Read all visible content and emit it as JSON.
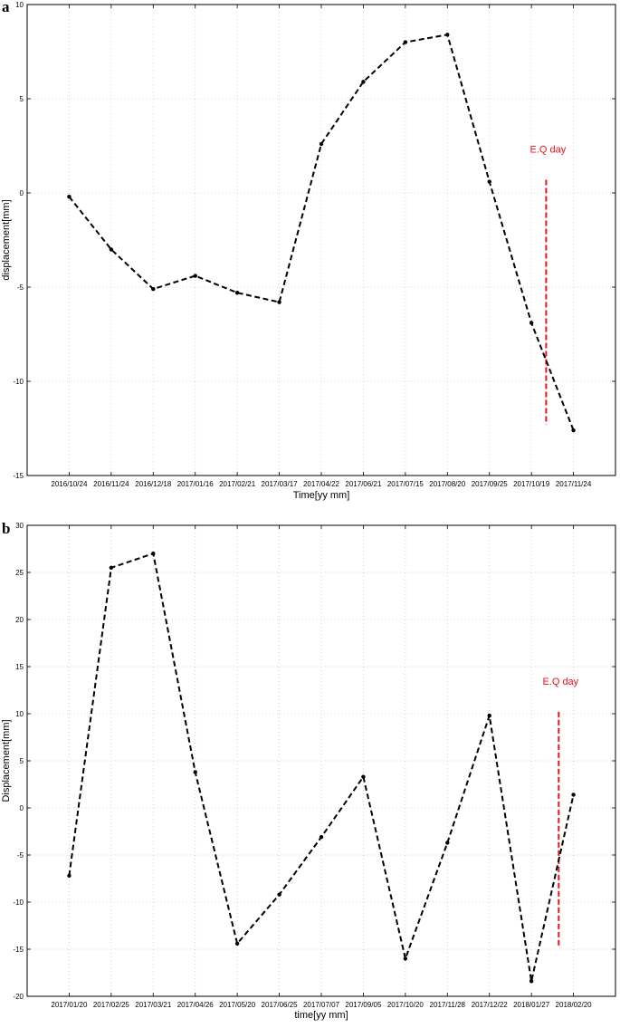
{
  "chart_data": [
    {
      "panel_label": "a",
      "type": "line",
      "xlabel": "Time[yy mm]",
      "ylabel": "displacement[mm]",
      "ylim": [
        -15,
        10
      ],
      "yticks": [
        -15,
        -10,
        -5,
        0,
        5,
        10
      ],
      "grid": true,
      "categories": [
        "2016/10/24",
        "2016/11/24",
        "2016/12/18",
        "2017/01/16",
        "2017/02/21",
        "2017/03/17",
        "2017/04/22",
        "2017/06/21",
        "2017/07/15",
        "2017/08/20",
        "2017/09/25",
        "2017/10/19",
        "2017/11/24"
      ],
      "series": [
        {
          "values": [
            -0.2,
            -3.0,
            -5.1,
            -4.4,
            -5.3,
            -5.8,
            2.6,
            5.9,
            8.0,
            8.4,
            0.6,
            -6.9,
            -12.6
          ]
        }
      ],
      "annotation": {
        "text": "E.Q day",
        "x_between": [
          11,
          12
        ],
        "x_frac": 0.35,
        "y_range": [
          -12.3,
          0.7
        ],
        "color": "#e8141b"
      }
    },
    {
      "panel_label": "b",
      "type": "line",
      "xlabel": "time[yy mm]",
      "ylabel": "Displacement[mm]",
      "ylim": [
        -20,
        30
      ],
      "yticks": [
        -20,
        -15,
        -10,
        -5,
        0,
        5,
        10,
        15,
        20,
        25,
        30
      ],
      "grid": true,
      "categories": [
        "2017/01/20",
        "2017/02/25",
        "2017/03/21",
        "2017/04/26",
        "2017/05/20",
        "2017/06/25",
        "2017/07/07",
        "2017/09/05",
        "2017/10/20",
        "2017/11/28",
        "2017/12/22",
        "2018/01/27",
        "2018/02/20"
      ],
      "series": [
        {
          "values": [
            -7.2,
            25.5,
            27.0,
            3.8,
            -14.4,
            -9.2,
            -3.1,
            3.3,
            -16.0,
            -3.7,
            9.8,
            -18.4,
            1.4
          ]
        }
      ],
      "annotation": {
        "text": "E.Q day",
        "x_between": [
          11,
          12
        ],
        "x_frac": 0.65,
        "y_range": [
          -14.6,
          10.2
        ],
        "color": "#e8141b"
      }
    }
  ]
}
